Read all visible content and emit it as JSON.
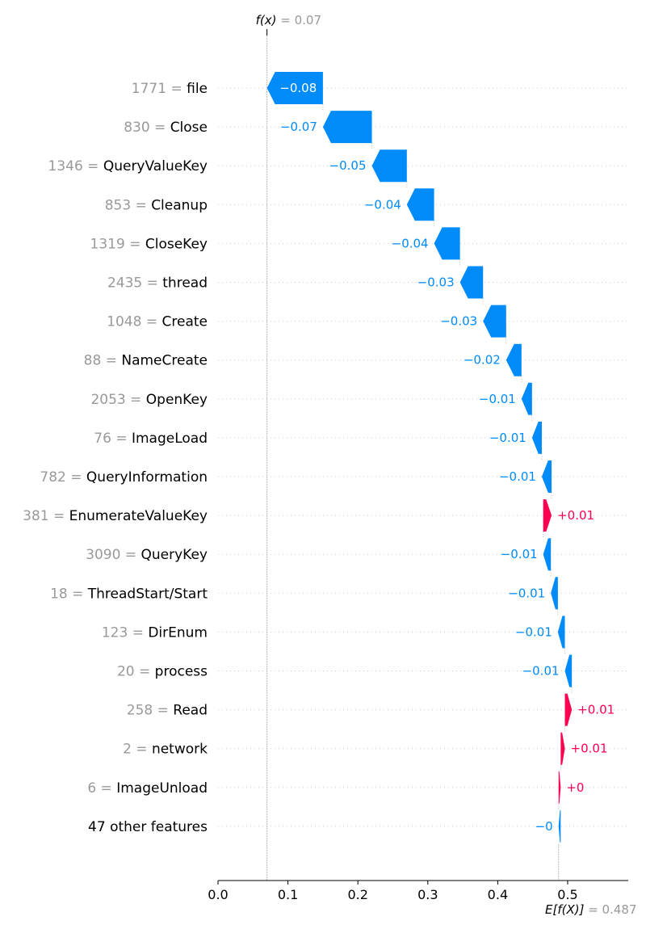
{
  "chart_data": {
    "type": "waterfall",
    "base_label": "E[f(X)]",
    "base_value": 0.487,
    "base_value_text": "= 0.487",
    "output_label": "f(x)",
    "output_value": 0.07,
    "output_value_text": "= 0.07",
    "xlim": [
      0.0,
      0.57
    ],
    "x_ticks": [
      0.0,
      0.1,
      0.2,
      0.3,
      0.4,
      0.5
    ],
    "x_tick_labels": [
      "0.0",
      "0.1",
      "0.2",
      "0.3",
      "0.4",
      "0.5"
    ],
    "colors": {
      "negative": "#008bfb",
      "positive": "#ff0051"
    },
    "features": [
      {
        "value": "1771",
        "name": "file",
        "contribution": -0.08,
        "label": "−0.08"
      },
      {
        "value": "830",
        "name": "Close",
        "contribution": -0.07,
        "label": "−0.07"
      },
      {
        "value": "1346",
        "name": "QueryValueKey",
        "contribution": -0.05,
        "label": "−0.05"
      },
      {
        "value": "853",
        "name": "Cleanup",
        "contribution": -0.039,
        "label": "−0.04"
      },
      {
        "value": "1319",
        "name": "CloseKey",
        "contribution": -0.037,
        "label": "−0.04"
      },
      {
        "value": "2435",
        "name": "thread",
        "contribution": -0.033,
        "label": "−0.03"
      },
      {
        "value": "1048",
        "name": "Create",
        "contribution": -0.033,
        "label": "−0.03"
      },
      {
        "value": "88",
        "name": "NameCreate",
        "contribution": -0.022,
        "label": "−0.02"
      },
      {
        "value": "2053",
        "name": "OpenKey",
        "contribution": -0.015,
        "label": "−0.01"
      },
      {
        "value": "76",
        "name": "ImageLoad",
        "contribution": -0.014,
        "label": "−0.01"
      },
      {
        "value": "782",
        "name": "QueryInformation",
        "contribution": -0.014,
        "label": "−0.01"
      },
      {
        "value": "381",
        "name": "EnumerateValueKey",
        "contribution": 0.012,
        "label": "+0.01"
      },
      {
        "value": "3090",
        "name": "QueryKey",
        "contribution": -0.011,
        "label": "−0.01"
      },
      {
        "value": "18",
        "name": "ThreadStart/Start",
        "contribution": -0.01,
        "label": "−0.01"
      },
      {
        "value": "123",
        "name": "DirEnum",
        "contribution": -0.01,
        "label": "−0.01"
      },
      {
        "value": "20",
        "name": "process",
        "contribution": -0.01,
        "label": "−0.01"
      },
      {
        "value": "258",
        "name": "Read",
        "contribution": 0.01,
        "label": "+0.01"
      },
      {
        "value": "2",
        "name": "network",
        "contribution": 0.006,
        "label": "+0.01"
      },
      {
        "value": "6",
        "name": "ImageUnload",
        "contribution": 0.003,
        "label": "+0"
      },
      {
        "value": "",
        "name": "47 other features",
        "contribution": -0.003,
        "label": "−0"
      }
    ]
  }
}
